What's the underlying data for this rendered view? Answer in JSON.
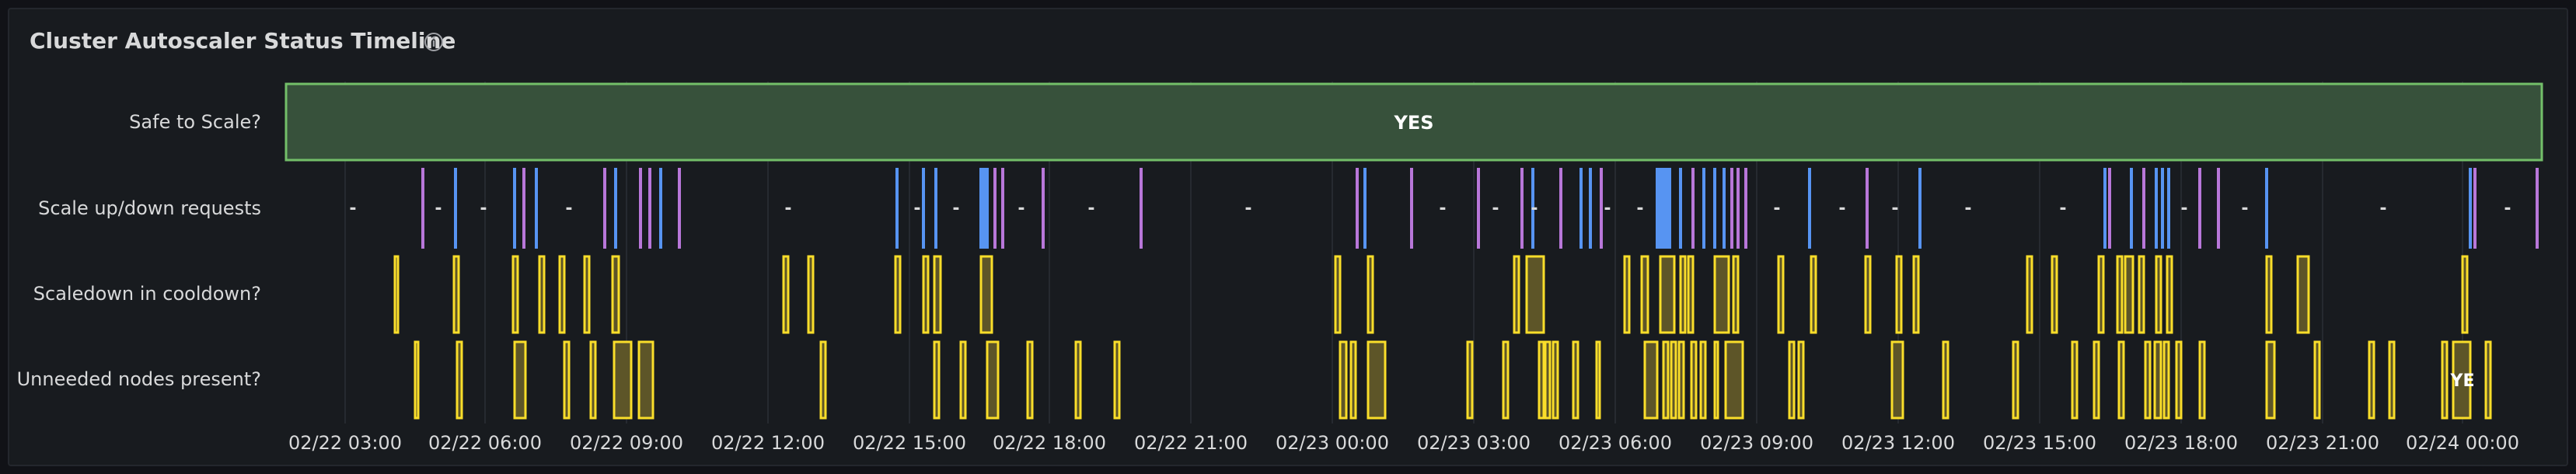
{
  "panel": {
    "title": "Cluster Autoscaler Status Timeline"
  },
  "icons": {
    "info": "info-circle-icon"
  },
  "colors": {
    "panel_bg": "#181b1f",
    "text": "#d8d9da",
    "yes_fill": "#37513b",
    "yes_border": "#73bf69",
    "blue": "#5794f2",
    "purple": "#b877d9",
    "yellow": "#fade2a",
    "yellow_fill": "#5d5528",
    "grid": "#262a30"
  },
  "rows": [
    {
      "label": "Safe to Scale?"
    },
    {
      "label": "Scale up/down requests"
    },
    {
      "label": "Scaledown in cooldown?"
    },
    {
      "label": "Unneeded nodes present?"
    }
  ],
  "x_axis": {
    "ticks": [
      "02/22 03:00",
      "02/22 06:00",
      "02/22 09:00",
      "02/22 12:00",
      "02/22 15:00",
      "02/22 18:00",
      "02/22 21:00",
      "02/23 00:00",
      "02/23 03:00",
      "02/23 06:00",
      "02/23 09:00",
      "02/23 12:00",
      "02/23 15:00",
      "02/23 18:00",
      "02/23 21:00",
      "02/24 00:00"
    ]
  },
  "state_values": {
    "yes": "YES",
    "none": "-",
    "truncated_yes": "YE"
  }
}
